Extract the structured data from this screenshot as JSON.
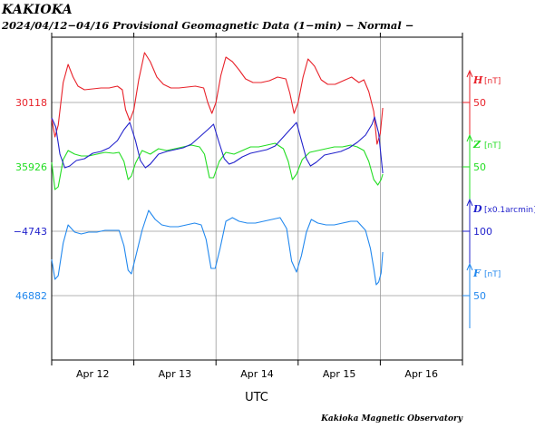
{
  "header": {
    "title": "KAKIOKA",
    "subtitle": "2024/04/12−04/16  Provisional Geomagnetic Data (1−min)  − Normal −"
  },
  "footer": {
    "credit": "Kakioka Magnetic Observatory"
  },
  "chart_data": {
    "type": "line",
    "xlabel": "UTC",
    "x_ticks": [
      "Apr 12",
      "Apr 13",
      "Apr 14",
      "Apr 15",
      "Apr 16"
    ],
    "x_range_days": [
      0,
      5
    ],
    "grid": true,
    "series": [
      {
        "component": "H",
        "unit": "[nT]",
        "color": "#e8222a",
        "left_label": "30118",
        "right_tick": "50",
        "points": [
          [
            0.0,
            -18
          ],
          [
            0.04,
            -38
          ],
          [
            0.08,
            -25
          ],
          [
            0.14,
            22
          ],
          [
            0.2,
            42
          ],
          [
            0.26,
            28
          ],
          [
            0.32,
            18
          ],
          [
            0.4,
            14
          ],
          [
            0.5,
            15
          ],
          [
            0.6,
            16
          ],
          [
            0.7,
            16
          ],
          [
            0.8,
            18
          ],
          [
            0.86,
            14
          ],
          [
            0.9,
            -8
          ],
          [
            0.95,
            -20
          ],
          [
            1.0,
            -8
          ],
          [
            1.06,
            25
          ],
          [
            1.13,
            55
          ],
          [
            1.2,
            45
          ],
          [
            1.28,
            28
          ],
          [
            1.36,
            20
          ],
          [
            1.45,
            16
          ],
          [
            1.55,
            16
          ],
          [
            1.65,
            17
          ],
          [
            1.75,
            18
          ],
          [
            1.85,
            16
          ],
          [
            1.9,
            0
          ],
          [
            1.95,
            -12
          ],
          [
            2.0,
            0
          ],
          [
            2.06,
            30
          ],
          [
            2.12,
            50
          ],
          [
            2.2,
            45
          ],
          [
            2.28,
            36
          ],
          [
            2.36,
            26
          ],
          [
            2.45,
            22
          ],
          [
            2.55,
            22
          ],
          [
            2.65,
            24
          ],
          [
            2.75,
            28
          ],
          [
            2.85,
            26
          ],
          [
            2.9,
            10
          ],
          [
            2.95,
            -12
          ],
          [
            3.0,
            0
          ],
          [
            3.06,
            28
          ],
          [
            3.12,
            48
          ],
          [
            3.2,
            40
          ],
          [
            3.28,
            25
          ],
          [
            3.36,
            20
          ],
          [
            3.45,
            20
          ],
          [
            3.55,
            24
          ],
          [
            3.65,
            28
          ],
          [
            3.74,
            22
          ],
          [
            3.8,
            25
          ],
          [
            3.86,
            12
          ],
          [
            3.92,
            -10
          ],
          [
            3.96,
            -46
          ],
          [
            4.0,
            -34
          ],
          [
            4.03,
            -6
          ]
        ]
      },
      {
        "component": "Z",
        "unit": "[nT]",
        "color": "#22dd22",
        "left_label": "35926",
        "right_tick": "50",
        "points": [
          [
            0.0,
            5
          ],
          [
            0.04,
            -25
          ],
          [
            0.08,
            -22
          ],
          [
            0.14,
            8
          ],
          [
            0.2,
            18
          ],
          [
            0.28,
            14
          ],
          [
            0.36,
            12
          ],
          [
            0.45,
            12
          ],
          [
            0.55,
            14
          ],
          [
            0.65,
            16
          ],
          [
            0.75,
            15
          ],
          [
            0.82,
            16
          ],
          [
            0.88,
            6
          ],
          [
            0.93,
            -14
          ],
          [
            0.97,
            -10
          ],
          [
            1.02,
            4
          ],
          [
            1.1,
            18
          ],
          [
            1.2,
            14
          ],
          [
            1.3,
            20
          ],
          [
            1.4,
            18
          ],
          [
            1.5,
            20
          ],
          [
            1.6,
            22
          ],
          [
            1.7,
            24
          ],
          [
            1.8,
            22
          ],
          [
            1.86,
            14
          ],
          [
            1.92,
            -12
          ],
          [
            1.97,
            -12
          ],
          [
            2.04,
            6
          ],
          [
            2.12,
            16
          ],
          [
            2.22,
            14
          ],
          [
            2.32,
            18
          ],
          [
            2.42,
            22
          ],
          [
            2.52,
            22
          ],
          [
            2.62,
            24
          ],
          [
            2.72,
            26
          ],
          [
            2.82,
            20
          ],
          [
            2.88,
            6
          ],
          [
            2.93,
            -14
          ],
          [
            2.98,
            -8
          ],
          [
            3.05,
            8
          ],
          [
            3.14,
            16
          ],
          [
            3.24,
            18
          ],
          [
            3.34,
            20
          ],
          [
            3.44,
            22
          ],
          [
            3.54,
            22
          ],
          [
            3.64,
            24
          ],
          [
            3.72,
            22
          ],
          [
            3.8,
            18
          ],
          [
            3.86,
            6
          ],
          [
            3.92,
            -14
          ],
          [
            3.97,
            -20
          ],
          [
            4.01,
            -14
          ],
          [
            4.03,
            -8
          ]
        ]
      },
      {
        "component": "D",
        "unit": "[x0.1arcmin]",
        "color": "#2222cc",
        "left_label": "−4743",
        "right_tick": "100",
        "points": [
          [
            0.0,
            125
          ],
          [
            0.05,
            115
          ],
          [
            0.1,
            85
          ],
          [
            0.16,
            70
          ],
          [
            0.22,
            72
          ],
          [
            0.3,
            78
          ],
          [
            0.4,
            80
          ],
          [
            0.5,
            86
          ],
          [
            0.6,
            88
          ],
          [
            0.7,
            92
          ],
          [
            0.8,
            100
          ],
          [
            0.88,
            112
          ],
          [
            0.95,
            120
          ],
          [
            1.02,
            100
          ],
          [
            1.08,
            78
          ],
          [
            1.14,
            70
          ],
          [
            1.2,
            74
          ],
          [
            1.3,
            85
          ],
          [
            1.4,
            88
          ],
          [
            1.5,
            90
          ],
          [
            1.6,
            92
          ],
          [
            1.7,
            96
          ],
          [
            1.8,
            104
          ],
          [
            1.9,
            112
          ],
          [
            1.97,
            118
          ],
          [
            2.03,
            100
          ],
          [
            2.1,
            80
          ],
          [
            2.16,
            74
          ],
          [
            2.22,
            76
          ],
          [
            2.32,
            82
          ],
          [
            2.42,
            86
          ],
          [
            2.52,
            88
          ],
          [
            2.62,
            90
          ],
          [
            2.72,
            94
          ],
          [
            2.82,
            104
          ],
          [
            2.9,
            112
          ],
          [
            2.98,
            120
          ],
          [
            3.04,
            100
          ],
          [
            3.1,
            80
          ],
          [
            3.15,
            72
          ],
          [
            3.22,
            76
          ],
          [
            3.32,
            84
          ],
          [
            3.42,
            86
          ],
          [
            3.52,
            88
          ],
          [
            3.62,
            92
          ],
          [
            3.72,
            98
          ],
          [
            3.82,
            106
          ],
          [
            3.9,
            118
          ],
          [
            3.93,
            126
          ],
          [
            3.98,
            108
          ],
          [
            4.03,
            64
          ]
        ]
      },
      {
        "component": "F",
        "unit": "[nT]",
        "color": "#2288ee",
        "left_label": "46882",
        "right_tick": "50",
        "points": [
          [
            0.0,
            40
          ],
          [
            0.04,
            18
          ],
          [
            0.08,
            22
          ],
          [
            0.14,
            58
          ],
          [
            0.2,
            78
          ],
          [
            0.28,
            70
          ],
          [
            0.36,
            68
          ],
          [
            0.45,
            70
          ],
          [
            0.55,
            70
          ],
          [
            0.65,
            72
          ],
          [
            0.75,
            72
          ],
          [
            0.82,
            72
          ],
          [
            0.88,
            55
          ],
          [
            0.93,
            28
          ],
          [
            0.97,
            24
          ],
          [
            1.02,
            42
          ],
          [
            1.1,
            72
          ],
          [
            1.18,
            94
          ],
          [
            1.26,
            84
          ],
          [
            1.34,
            78
          ],
          [
            1.44,
            76
          ],
          [
            1.54,
            76
          ],
          [
            1.64,
            78
          ],
          [
            1.74,
            80
          ],
          [
            1.82,
            78
          ],
          [
            1.88,
            62
          ],
          [
            1.94,
            30
          ],
          [
            1.99,
            30
          ],
          [
            2.05,
            52
          ],
          [
            2.12,
            82
          ],
          [
            2.2,
            86
          ],
          [
            2.28,
            82
          ],
          [
            2.38,
            80
          ],
          [
            2.48,
            80
          ],
          [
            2.58,
            82
          ],
          [
            2.68,
            84
          ],
          [
            2.78,
            86
          ],
          [
            2.86,
            74
          ],
          [
            2.92,
            38
          ],
          [
            2.98,
            26
          ],
          [
            3.04,
            44
          ],
          [
            3.1,
            70
          ],
          [
            3.16,
            84
          ],
          [
            3.24,
            80
          ],
          [
            3.34,
            78
          ],
          [
            3.44,
            78
          ],
          [
            3.54,
            80
          ],
          [
            3.64,
            82
          ],
          [
            3.72,
            82
          ],
          [
            3.82,
            72
          ],
          [
            3.88,
            52
          ],
          [
            3.92,
            30
          ],
          [
            3.95,
            12
          ],
          [
            3.98,
            15
          ],
          [
            4.01,
            25
          ],
          [
            4.03,
            48
          ]
        ]
      }
    ]
  }
}
